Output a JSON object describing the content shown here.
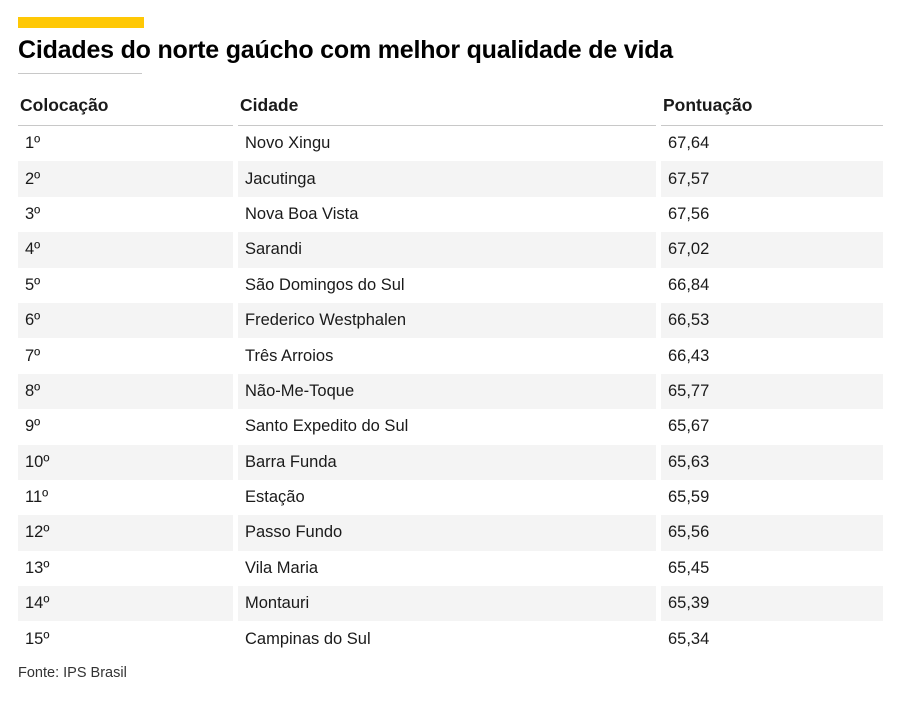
{
  "page": {
    "accent_color": "#ffc805",
    "stripe_color": "#f4f4f4",
    "rule_color": "#c8c8c8"
  },
  "chart_data": {
    "type": "table",
    "title": "Cidades do norte gaúcho com melhor qualidade de vida",
    "columns": [
      "Colocação",
      "Cidade",
      "Pontuação"
    ],
    "rows": [
      {
        "rank": "1º",
        "city": "Novo Xingu",
        "score": "67,64"
      },
      {
        "rank": "2º",
        "city": "Jacutinga",
        "score": "67,57"
      },
      {
        "rank": "3º",
        "city": "Nova Boa Vista",
        "score": "67,56"
      },
      {
        "rank": "4º",
        "city": "Sarandi",
        "score": "67,02"
      },
      {
        "rank": "5º",
        "city": "São Domingos do Sul",
        "score": "66,84"
      },
      {
        "rank": "6º",
        "city": "Frederico Westphalen",
        "score": "66,53"
      },
      {
        "rank": "7º",
        "city": "Três Arroios",
        "score": "66,43"
      },
      {
        "rank": "8º",
        "city": "Não-Me-Toque",
        "score": "65,77"
      },
      {
        "rank": "9º",
        "city": "Santo Expedito do Sul",
        "score": "65,67"
      },
      {
        "rank": "10º",
        "city": "Barra Funda",
        "score": "65,63"
      },
      {
        "rank": "11º",
        "city": "Estação",
        "score": "65,59"
      },
      {
        "rank": "12º",
        "city": "Passo Fundo",
        "score": "65,56"
      },
      {
        "rank": "13º",
        "city": "Vila Maria",
        "score": "65,45"
      },
      {
        "rank": "14º",
        "city": "Montauri",
        "score": "65,39"
      },
      {
        "rank": "15º",
        "city": "Campinas do Sul",
        "score": "65,34"
      }
    ],
    "values": [
      67.64,
      67.57,
      67.56,
      67.02,
      66.84,
      66.53,
      66.43,
      65.77,
      65.67,
      65.63,
      65.59,
      65.56,
      65.45,
      65.39,
      65.34
    ],
    "source": "Fonte: IPS Brasil",
    "layout": {
      "striped_rows": "even",
      "grid": "off",
      "header_border": "on"
    }
  }
}
